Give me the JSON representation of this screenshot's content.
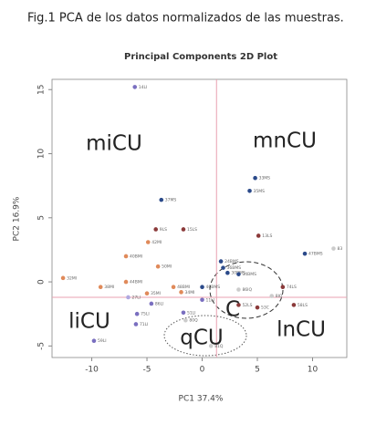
{
  "caption": "Fig.1 PCA de los datos normalizados de las muestras.",
  "chart_data": {
    "type": "scatter",
    "title": "Principal Components 2D Plot",
    "x_label": "PC1 37.4%",
    "y_label": "PC2 16.9%",
    "xlim": [
      -13.6,
      13.1
    ],
    "ylim": [
      -5.9,
      15.8
    ],
    "xticks": [
      -10,
      -5,
      0,
      5,
      10
    ],
    "yticks": [
      -5,
      0,
      5,
      10,
      15
    ],
    "vline": 1.3,
    "hline": -1.2,
    "refline_color": "#e8a0b0",
    "labels": [
      "14LI",
      "37MS",
      "9LS",
      "15LS",
      "42MI",
      "40BMI",
      "50MI",
      "33MS",
      "35MS",
      "13LS",
      "47BMS",
      "83",
      "32MI",
      "38MI",
      "44BMI",
      "48BMI",
      "34MI",
      "35MI",
      "27LI",
      "86LI",
      "75LI",
      "71LI",
      "59LI",
      "51LI",
      "80Q",
      "81Q",
      "24BMS",
      "36BMS",
      "30BMS",
      "34BMS",
      "74LS",
      "58LS",
      "8IQ",
      "46BMS",
      "52LS",
      "53C",
      "86IQ",
      "11LI"
    ],
    "x": [
      -6.1,
      -3.7,
      -4.2,
      -1.7,
      -4.9,
      -6.9,
      -4.0,
      4.8,
      4.3,
      5.1,
      9.3,
      11.9,
      -12.6,
      -9.2,
      -6.9,
      -2.6,
      -1.9,
      -5.0,
      -6.7,
      -4.6,
      -5.9,
      -6.0,
      -9.8,
      -1.7,
      -1.5,
      0.8,
      1.7,
      1.9,
      2.3,
      3.3,
      7.3,
      8.3,
      6.3,
      0.0,
      3.3,
      5.0,
      3.3,
      0.0
    ],
    "y": [
      15.2,
      6.4,
      4.1,
      4.1,
      3.1,
      2.0,
      1.2,
      8.1,
      7.1,
      3.6,
      2.2,
      2.6,
      0.3,
      -0.4,
      0.0,
      -0.4,
      -0.8,
      -0.9,
      -1.2,
      -1.7,
      -2.5,
      -3.3,
      -4.6,
      -2.4,
      -3.0,
      -5.0,
      1.6,
      1.1,
      0.7,
      0.6,
      -0.4,
      -1.8,
      -1.1,
      -0.4,
      -1.8,
      -2.0,
      -0.6,
      -1.4
    ],
    "colors": [
      "#7a6fc0",
      "#2b4a8a",
      "#8b3a3a",
      "#8b3a3a",
      "#e08a5a",
      "#e08a5a",
      "#e08a5a",
      "#2b4a8a",
      "#2b4a8a",
      "#8b3a3a",
      "#2b4a8a",
      "#cccccc",
      "#e08a5a",
      "#e08a5a",
      "#e08a5a",
      "#e08a5a",
      "#e08a5a",
      "#e08a5a",
      "#b0a8e0",
      "#7a6fc0",
      "#7a6fc0",
      "#7a6fc0",
      "#7a6fc0",
      "#7a6fc0",
      "#cccccc",
      "#cccccc",
      "#2b4a8a",
      "#2b4a8a",
      "#2b4a8a",
      "#2b4a8a",
      "#8b3a3a",
      "#8b3a3a",
      "#cccccc",
      "#2b4a8a",
      "#8b3a3a",
      "#8b3a3a",
      "#cccccc",
      "#7a6fc0"
    ],
    "annotations": [
      "miCU",
      "mnCU",
      "liCU",
      "lnCU",
      "qCU",
      "C"
    ]
  }
}
